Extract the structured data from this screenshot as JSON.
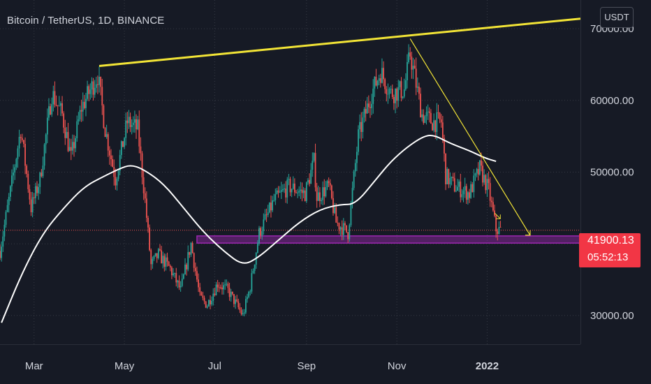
{
  "header": {
    "title": "Bitcoin / TetherUS, 1D, BINANCE",
    "currency_button": "USDT"
  },
  "colors": {
    "background": "#161a25",
    "up": "#26a69a",
    "down": "#ef5350",
    "trendline": "#f2e436",
    "ma": "#ffffff",
    "zone": "#9c27b0",
    "price_tag": "#f23645"
  },
  "price_tag": {
    "value": "41900.13",
    "countdown": "05:52:13"
  },
  "chart_data": {
    "type": "candlestick",
    "x_axis": {
      "ticks": [
        {
          "label": "Mar",
          "date": "2021-03-01",
          "bold": false
        },
        {
          "label": "May",
          "date": "2021-05-01",
          "bold": false
        },
        {
          "label": "Jul",
          "date": "2021-07-01",
          "bold": false
        },
        {
          "label": "Sep",
          "date": "2021-09-01",
          "bold": false
        },
        {
          "label": "Nov",
          "date": "2021-11-01",
          "bold": false
        },
        {
          "label": "2022",
          "date": "2022-01-01",
          "bold": true
        }
      ],
      "range": [
        "2021-02-06",
        "2022-03-05"
      ]
    },
    "y_axis": {
      "ticks": [
        {
          "value": 30000,
          "label": "30000.00"
        },
        {
          "value": 40000,
          "label": ""
        },
        {
          "value": 50000,
          "label": "50000.00"
        },
        {
          "value": 60000,
          "label": "60000.00"
        },
        {
          "value": 70000,
          "label": "70000.00"
        }
      ],
      "range": [
        26000,
        74000
      ],
      "grid": true
    },
    "close_path": [
      [
        "2021-02-06",
        39000
      ],
      [
        "2021-02-14",
        48500
      ],
      [
        "2021-02-20",
        56000
      ],
      [
        "2021-02-27",
        45000
      ],
      [
        "2021-03-05",
        49000
      ],
      [
        "2021-03-13",
        61000
      ],
      [
        "2021-03-20",
        58000
      ],
      [
        "2021-03-26",
        52000
      ],
      [
        "2021-04-02",
        59000
      ],
      [
        "2021-04-13",
        63500
      ],
      [
        "2021-04-18",
        56000
      ],
      [
        "2021-04-25",
        49000
      ],
      [
        "2021-05-03",
        57000
      ],
      [
        "2021-05-10",
        56000
      ],
      [
        "2021-05-15",
        46000
      ],
      [
        "2021-05-19",
        37000
      ],
      [
        "2021-05-24",
        38500
      ],
      [
        "2021-06-01",
        36500
      ],
      [
        "2021-06-08",
        33500
      ],
      [
        "2021-06-15",
        40000
      ],
      [
        "2021-06-21",
        32500
      ],
      [
        "2021-06-26",
        31500
      ],
      [
        "2021-07-03",
        34500
      ],
      [
        "2021-07-10",
        33500
      ],
      [
        "2021-07-20",
        30000
      ],
      [
        "2021-07-25",
        34000
      ],
      [
        "2021-07-31",
        41500
      ],
      [
        "2021-08-10",
        46000
      ],
      [
        "2021-08-20",
        48000
      ],
      [
        "2021-08-31",
        47000
      ],
      [
        "2021-09-06",
        51500
      ],
      [
        "2021-09-08",
        46500
      ],
      [
        "2021-09-16",
        48000
      ],
      [
        "2021-09-21",
        43000
      ],
      [
        "2021-09-29",
        41500
      ],
      [
        "2021-10-06",
        55000
      ],
      [
        "2021-10-15",
        61000
      ],
      [
        "2021-10-21",
        64000
      ],
      [
        "2021-10-28",
        61000
      ],
      [
        "2021-11-06",
        61500
      ],
      [
        "2021-11-10",
        66500
      ],
      [
        "2021-11-18",
        58000
      ],
      [
        "2021-11-25",
        57000
      ],
      [
        "2021-12-01",
        57000
      ],
      [
        "2021-12-04",
        49500
      ],
      [
        "2021-12-10",
        48000
      ],
      [
        "2021-12-20",
        47000
      ],
      [
        "2021-12-27",
        50500
      ],
      [
        "2022-01-02",
        47500
      ],
      [
        "2022-01-07",
        42000
      ],
      [
        "2022-01-10",
        41900
      ]
    ],
    "moving_average": [
      [
        "2021-02-07",
        29000
      ],
      [
        "2021-02-21",
        36000
      ],
      [
        "2021-03-07",
        41500
      ],
      [
        "2021-03-21",
        45000
      ],
      [
        "2021-04-04",
        48000
      ],
      [
        "2021-04-18",
        49500
      ],
      [
        "2021-04-28",
        50500
      ],
      [
        "2021-05-05",
        51000
      ],
      [
        "2021-05-13",
        50500
      ],
      [
        "2021-05-27",
        48500
      ],
      [
        "2021-06-10",
        45000
      ],
      [
        "2021-06-24",
        41500
      ],
      [
        "2021-07-08",
        38800
      ],
      [
        "2021-07-20",
        37000
      ],
      [
        "2021-07-30",
        38000
      ],
      [
        "2021-08-13",
        40500
      ],
      [
        "2021-08-27",
        43000
      ],
      [
        "2021-09-10",
        44800
      ],
      [
        "2021-09-24",
        45500
      ],
      [
        "2021-10-04",
        45500
      ],
      [
        "2021-10-18",
        49000
      ],
      [
        "2021-10-28",
        51500
      ],
      [
        "2021-11-08",
        53500
      ],
      [
        "2021-11-19",
        55000
      ],
      [
        "2021-11-26",
        55200
      ],
      [
        "2021-12-07",
        54000
      ],
      [
        "2021-12-20",
        53000
      ],
      [
        "2021-12-30",
        52000
      ],
      [
        "2022-01-07",
        51500
      ]
    ],
    "drawings": {
      "upper_trendline": {
        "from": [
          "2021-04-14",
          64800
        ],
        "to": [
          "2022-03-05",
          71400
        ]
      },
      "down_trendline": {
        "from": [
          "2021-11-10",
          68600
        ],
        "to": [
          "2022-01-30",
          41200
        ]
      },
      "support_zone": {
        "start": "2021-06-19",
        "low": 40100,
        "high": 41100
      }
    }
  }
}
